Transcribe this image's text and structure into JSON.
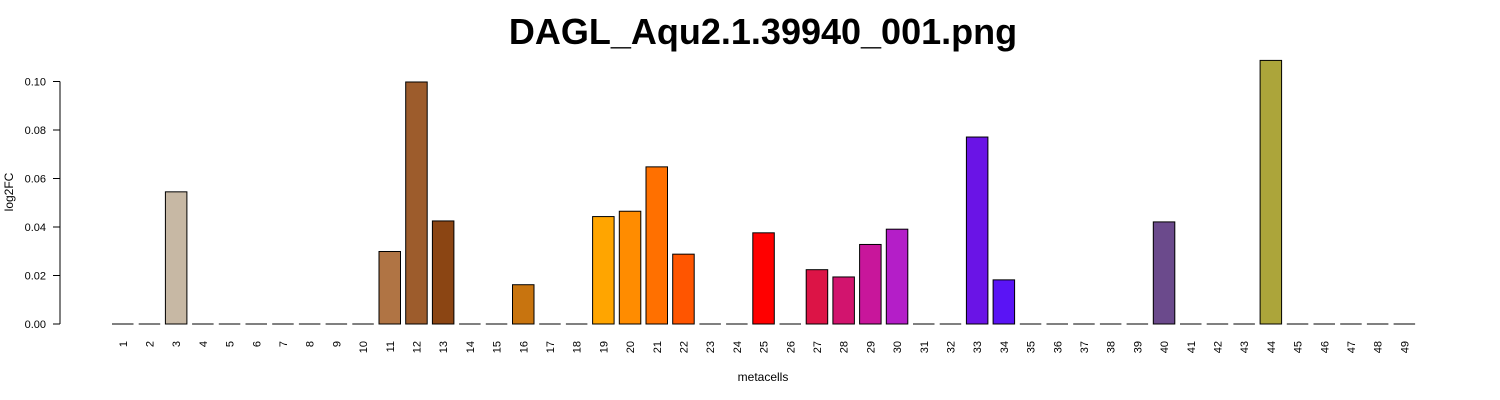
{
  "chart_data": {
    "type": "bar",
    "title": "DAGL_Aqu2.1.39940_001.png",
    "xlabel": "metacells",
    "ylabel": "log2FC",
    "ylim": [
      0,
      0.11
    ],
    "yticks": [
      "0.00",
      "0.02",
      "0.04",
      "0.06",
      "0.08",
      "0.10"
    ],
    "categories": [
      "1",
      "2",
      "3",
      "4",
      "5",
      "6",
      "7",
      "8",
      "9",
      "10",
      "11",
      "12",
      "13",
      "14",
      "15",
      "16",
      "17",
      "18",
      "19",
      "20",
      "21",
      "22",
      "23",
      "24",
      "25",
      "26",
      "27",
      "28",
      "29",
      "30",
      "31",
      "32",
      "33",
      "34",
      "35",
      "36",
      "37",
      "38",
      "39",
      "40",
      "41",
      "42",
      "43",
      "44",
      "45",
      "46",
      "47",
      "48",
      "49"
    ],
    "values": [
      0,
      0,
      0.0545,
      0,
      0,
      0,
      0,
      0,
      0,
      0,
      0.0299,
      0.0998,
      0.0425,
      0,
      0,
      0.0162,
      0,
      0,
      0.0443,
      0.0465,
      0.0648,
      0.0288,
      0,
      0,
      0.0376,
      0,
      0.0224,
      0.0194,
      0.0328,
      0.0391,
      0,
      0,
      0.0771,
      0.0182,
      0,
      0,
      0,
      0,
      0,
      0.0421,
      0,
      0,
      0,
      0.1087,
      0,
      0,
      0,
      0,
      0
    ],
    "colors": [
      "#999999",
      "#999999",
      "#c7b8a4",
      "#999999",
      "#999999",
      "#999999",
      "#999999",
      "#999999",
      "#999999",
      "#999999",
      "#b07444",
      "#9d5c2c",
      "#8b4513",
      "#999999",
      "#999999",
      "#c8740f",
      "#999999",
      "#999999",
      "#ffa500",
      "#ff8c00",
      "#ff7000",
      "#ff5500",
      "#999999",
      "#999999",
      "#ff0000",
      "#999999",
      "#dc1446",
      "#d2146e",
      "#c8169b",
      "#b41ec8",
      "#999999",
      "#999999",
      "#6a14e6",
      "#5a14f5",
      "#999999",
      "#999999",
      "#999999",
      "#999999",
      "#999999",
      "#6b4a8c",
      "#999999",
      "#999999",
      "#999999",
      "#aca53a",
      "#999999",
      "#999999",
      "#999999",
      "#999999",
      "#999999"
    ],
    "grid": false,
    "legend": "none"
  }
}
